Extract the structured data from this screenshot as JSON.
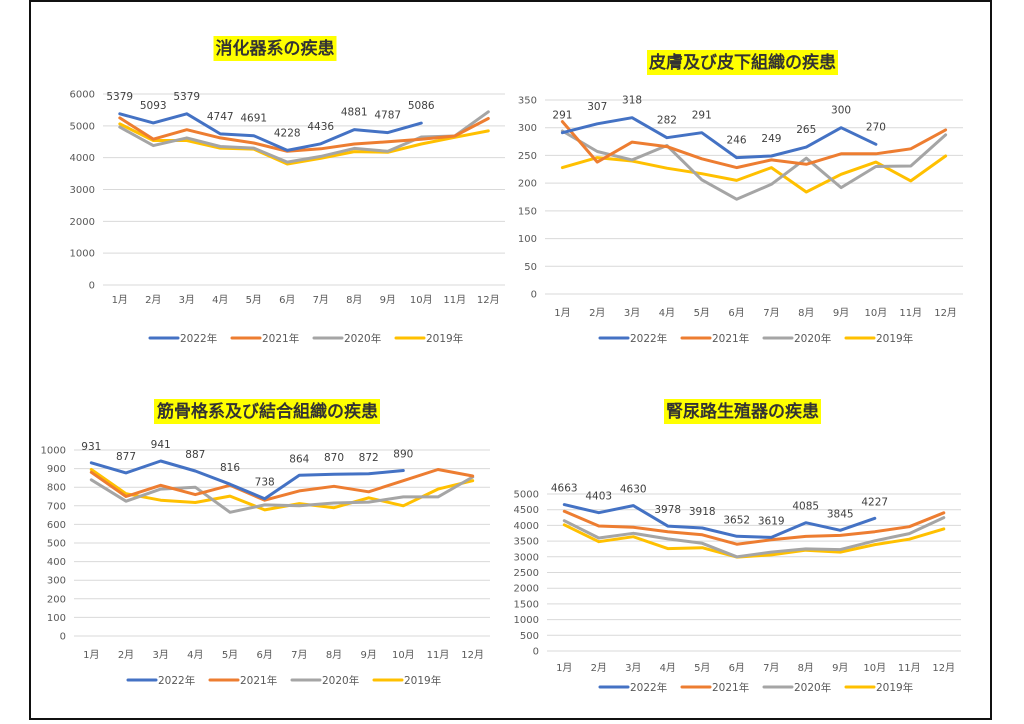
{
  "page": {
    "background": "#ffffff",
    "title_highlight": "#ffff00"
  },
  "series_colors": {
    "2022年": "#4472c4",
    "2021年": "#ed7d31",
    "2020年": "#a5a5a5",
    "2019年": "#ffc000"
  },
  "chart_data": [
    {
      "type": "line",
      "title": "消化器系の疾患",
      "categories": [
        "1月",
        "2月",
        "3月",
        "4月",
        "5月",
        "6月",
        "7月",
        "8月",
        "9月",
        "10月",
        "11月",
        "12月"
      ],
      "ylim": [
        0,
        6000
      ],
      "yticks": [
        0,
        1000,
        2000,
        3000,
        4000,
        5000,
        6000
      ],
      "grid": true,
      "legend": "bottom",
      "data_labels_series": "2022年",
      "series": [
        {
          "name": "2022年",
          "values": [
            5379,
            5093,
            5379,
            4747,
            4691,
            4228,
            4436,
            4881,
            4787,
            5086,
            null,
            null
          ]
        },
        {
          "name": "2021年",
          "values": [
            5250,
            4580,
            4880,
            4620,
            4460,
            4200,
            4280,
            4430,
            4500,
            4580,
            4680,
            5230
          ]
        },
        {
          "name": "2020年",
          "values": [
            4960,
            4380,
            4620,
            4350,
            4300,
            3860,
            4040,
            4290,
            4200,
            4650,
            4680,
            5440
          ]
        },
        {
          "name": "2019年",
          "values": [
            5060,
            4540,
            4540,
            4300,
            4270,
            3800,
            3980,
            4190,
            4170,
            4430,
            4640,
            4840
          ]
        }
      ]
    },
    {
      "type": "line",
      "title": "皮膚及び皮下組織の疾患",
      "categories": [
        "1月",
        "2月",
        "3月",
        "4月",
        "5月",
        "6月",
        "7月",
        "8月",
        "9月",
        "10月",
        "11月",
        "12月"
      ],
      "ylim": [
        0,
        350
      ],
      "yticks": [
        0,
        50,
        100,
        150,
        200,
        250,
        300,
        350
      ],
      "grid": true,
      "legend": "bottom",
      "data_labels_series": "2022年",
      "series": [
        {
          "name": "2022年",
          "values": [
            291,
            307,
            318,
            282,
            291,
            246,
            249,
            265,
            300,
            270,
            null,
            null
          ]
        },
        {
          "name": "2021年",
          "values": [
            311,
            238,
            274,
            266,
            244,
            228,
            242,
            234,
            253,
            253,
            262,
            296
          ]
        },
        {
          "name": "2020年",
          "values": [
            294,
            257,
            242,
            268,
            206,
            171,
            198,
            245,
            192,
            230,
            231,
            287
          ]
        },
        {
          "name": "2019年",
          "values": [
            228,
            246,
            240,
            227,
            217,
            205,
            228,
            184,
            216,
            238,
            204,
            249
          ]
        }
      ]
    },
    {
      "type": "line",
      "title": "筋骨格系及び結合組織の疾患",
      "categories": [
        "1月",
        "2月",
        "3月",
        "4月",
        "5月",
        "6月",
        "7月",
        "8月",
        "9月",
        "10月",
        "11月",
        "12月"
      ],
      "ylim": [
        0,
        1000
      ],
      "yticks": [
        0,
        100,
        200,
        300,
        400,
        500,
        600,
        700,
        800,
        900,
        1000
      ],
      "grid": true,
      "legend": "bottom",
      "data_labels_series": "2022年",
      "series": [
        {
          "name": "2022年",
          "values": [
            931,
            877,
            941,
            887,
            816,
            738,
            864,
            870,
            872,
            890,
            null,
            null
          ]
        },
        {
          "name": "2021年",
          "values": [
            880,
            750,
            810,
            760,
            810,
            730,
            780,
            805,
            775,
            835,
            895,
            860
          ]
        },
        {
          "name": "2020年",
          "values": [
            840,
            725,
            790,
            800,
            665,
            705,
            700,
            715,
            720,
            748,
            748,
            855
          ]
        },
        {
          "name": "2019年",
          "values": [
            895,
            765,
            730,
            718,
            752,
            678,
            712,
            690,
            743,
            700,
            790,
            835
          ]
        }
      ]
    },
    {
      "type": "line",
      "title": "腎尿路生殖器の疾患",
      "categories": [
        "1月",
        "2月",
        "3月",
        "4月",
        "5月",
        "6月",
        "7月",
        "8月",
        "9月",
        "10月",
        "11月",
        "12月"
      ],
      "ylim": [
        0,
        5000
      ],
      "yticks": [
        0,
        500,
        1000,
        1500,
        2000,
        2500,
        3000,
        3500,
        4000,
        4500,
        5000
      ],
      "grid": true,
      "legend": "bottom",
      "data_labels_series": "2022年",
      "series": [
        {
          "name": "2022年",
          "values": [
            4663,
            4403,
            4630,
            3978,
            3918,
            3652,
            3619,
            4085,
            3845,
            4227,
            null,
            null
          ]
        },
        {
          "name": "2021年",
          "values": [
            4450,
            3980,
            3940,
            3800,
            3700,
            3400,
            3540,
            3650,
            3680,
            3800,
            3960,
            4400
          ]
        },
        {
          "name": "2020年",
          "values": [
            4150,
            3600,
            3750,
            3570,
            3430,
            3000,
            3150,
            3250,
            3230,
            3510,
            3740,
            4250
          ]
        },
        {
          "name": "2019年",
          "values": [
            4020,
            3480,
            3640,
            3260,
            3290,
            2990,
            3060,
            3210,
            3150,
            3390,
            3560,
            3890
          ]
        }
      ]
    }
  ]
}
